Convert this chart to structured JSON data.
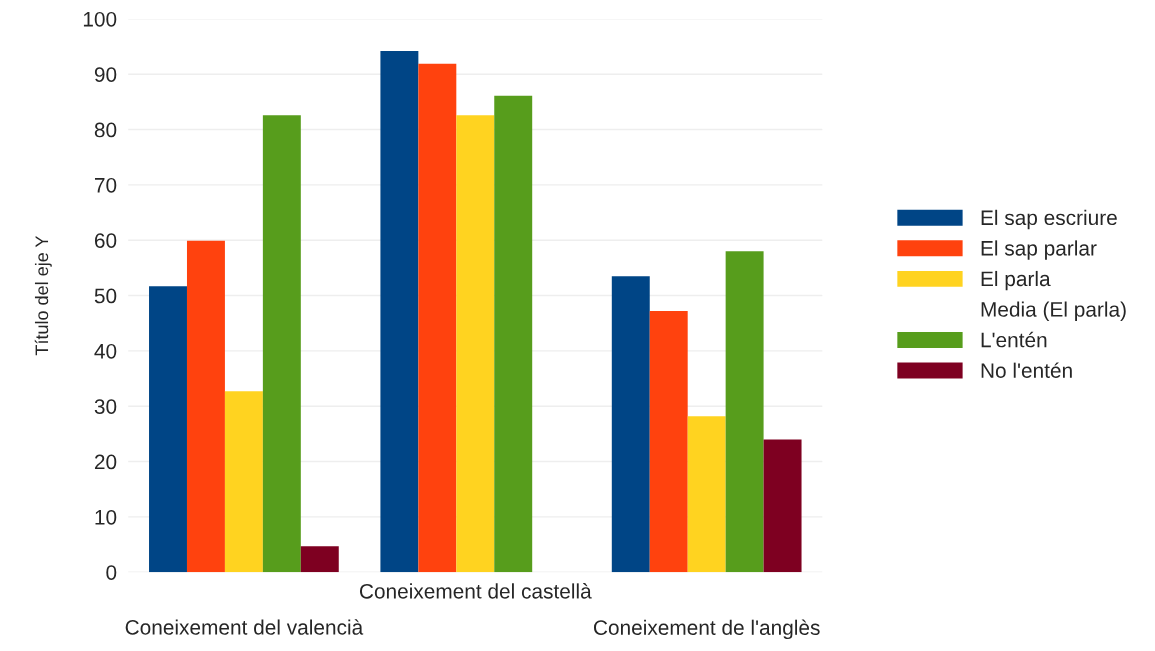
{
  "chart_data": {
    "type": "bar",
    "ylabel": "Título del eje Y",
    "categories": [
      "Coneixement del valencià",
      "Coneixement del castellà",
      "Coneixement de l'anglès"
    ],
    "series": [
      {
        "name": "El sap escriure",
        "color": "#004586",
        "values": [
          51.7,
          94.2,
          53.5
        ]
      },
      {
        "name": "El sap parlar",
        "color": "#ff420e",
        "values": [
          59.9,
          91.9,
          47.2
        ]
      },
      {
        "name": "El parla",
        "color": "#ffd320",
        "values": [
          32.7,
          82.6,
          28.2
        ]
      },
      {
        "name": "Media (El parla)",
        "type": "line",
        "values": [
          null,
          null,
          null
        ]
      },
      {
        "name": "L'entén",
        "color": "#579d1c",
        "values": [
          82.6,
          86.1,
          58.0
        ]
      },
      {
        "name": "No l'entén",
        "color": "#7e0021",
        "values": [
          4.7,
          null,
          24.0
        ]
      }
    ],
    "ylim": [
      0,
      100
    ],
    "yticks": [
      0,
      10,
      20,
      30,
      40,
      50,
      60,
      70,
      80,
      90,
      100
    ],
    "grid": "y",
    "legend": "right"
  }
}
